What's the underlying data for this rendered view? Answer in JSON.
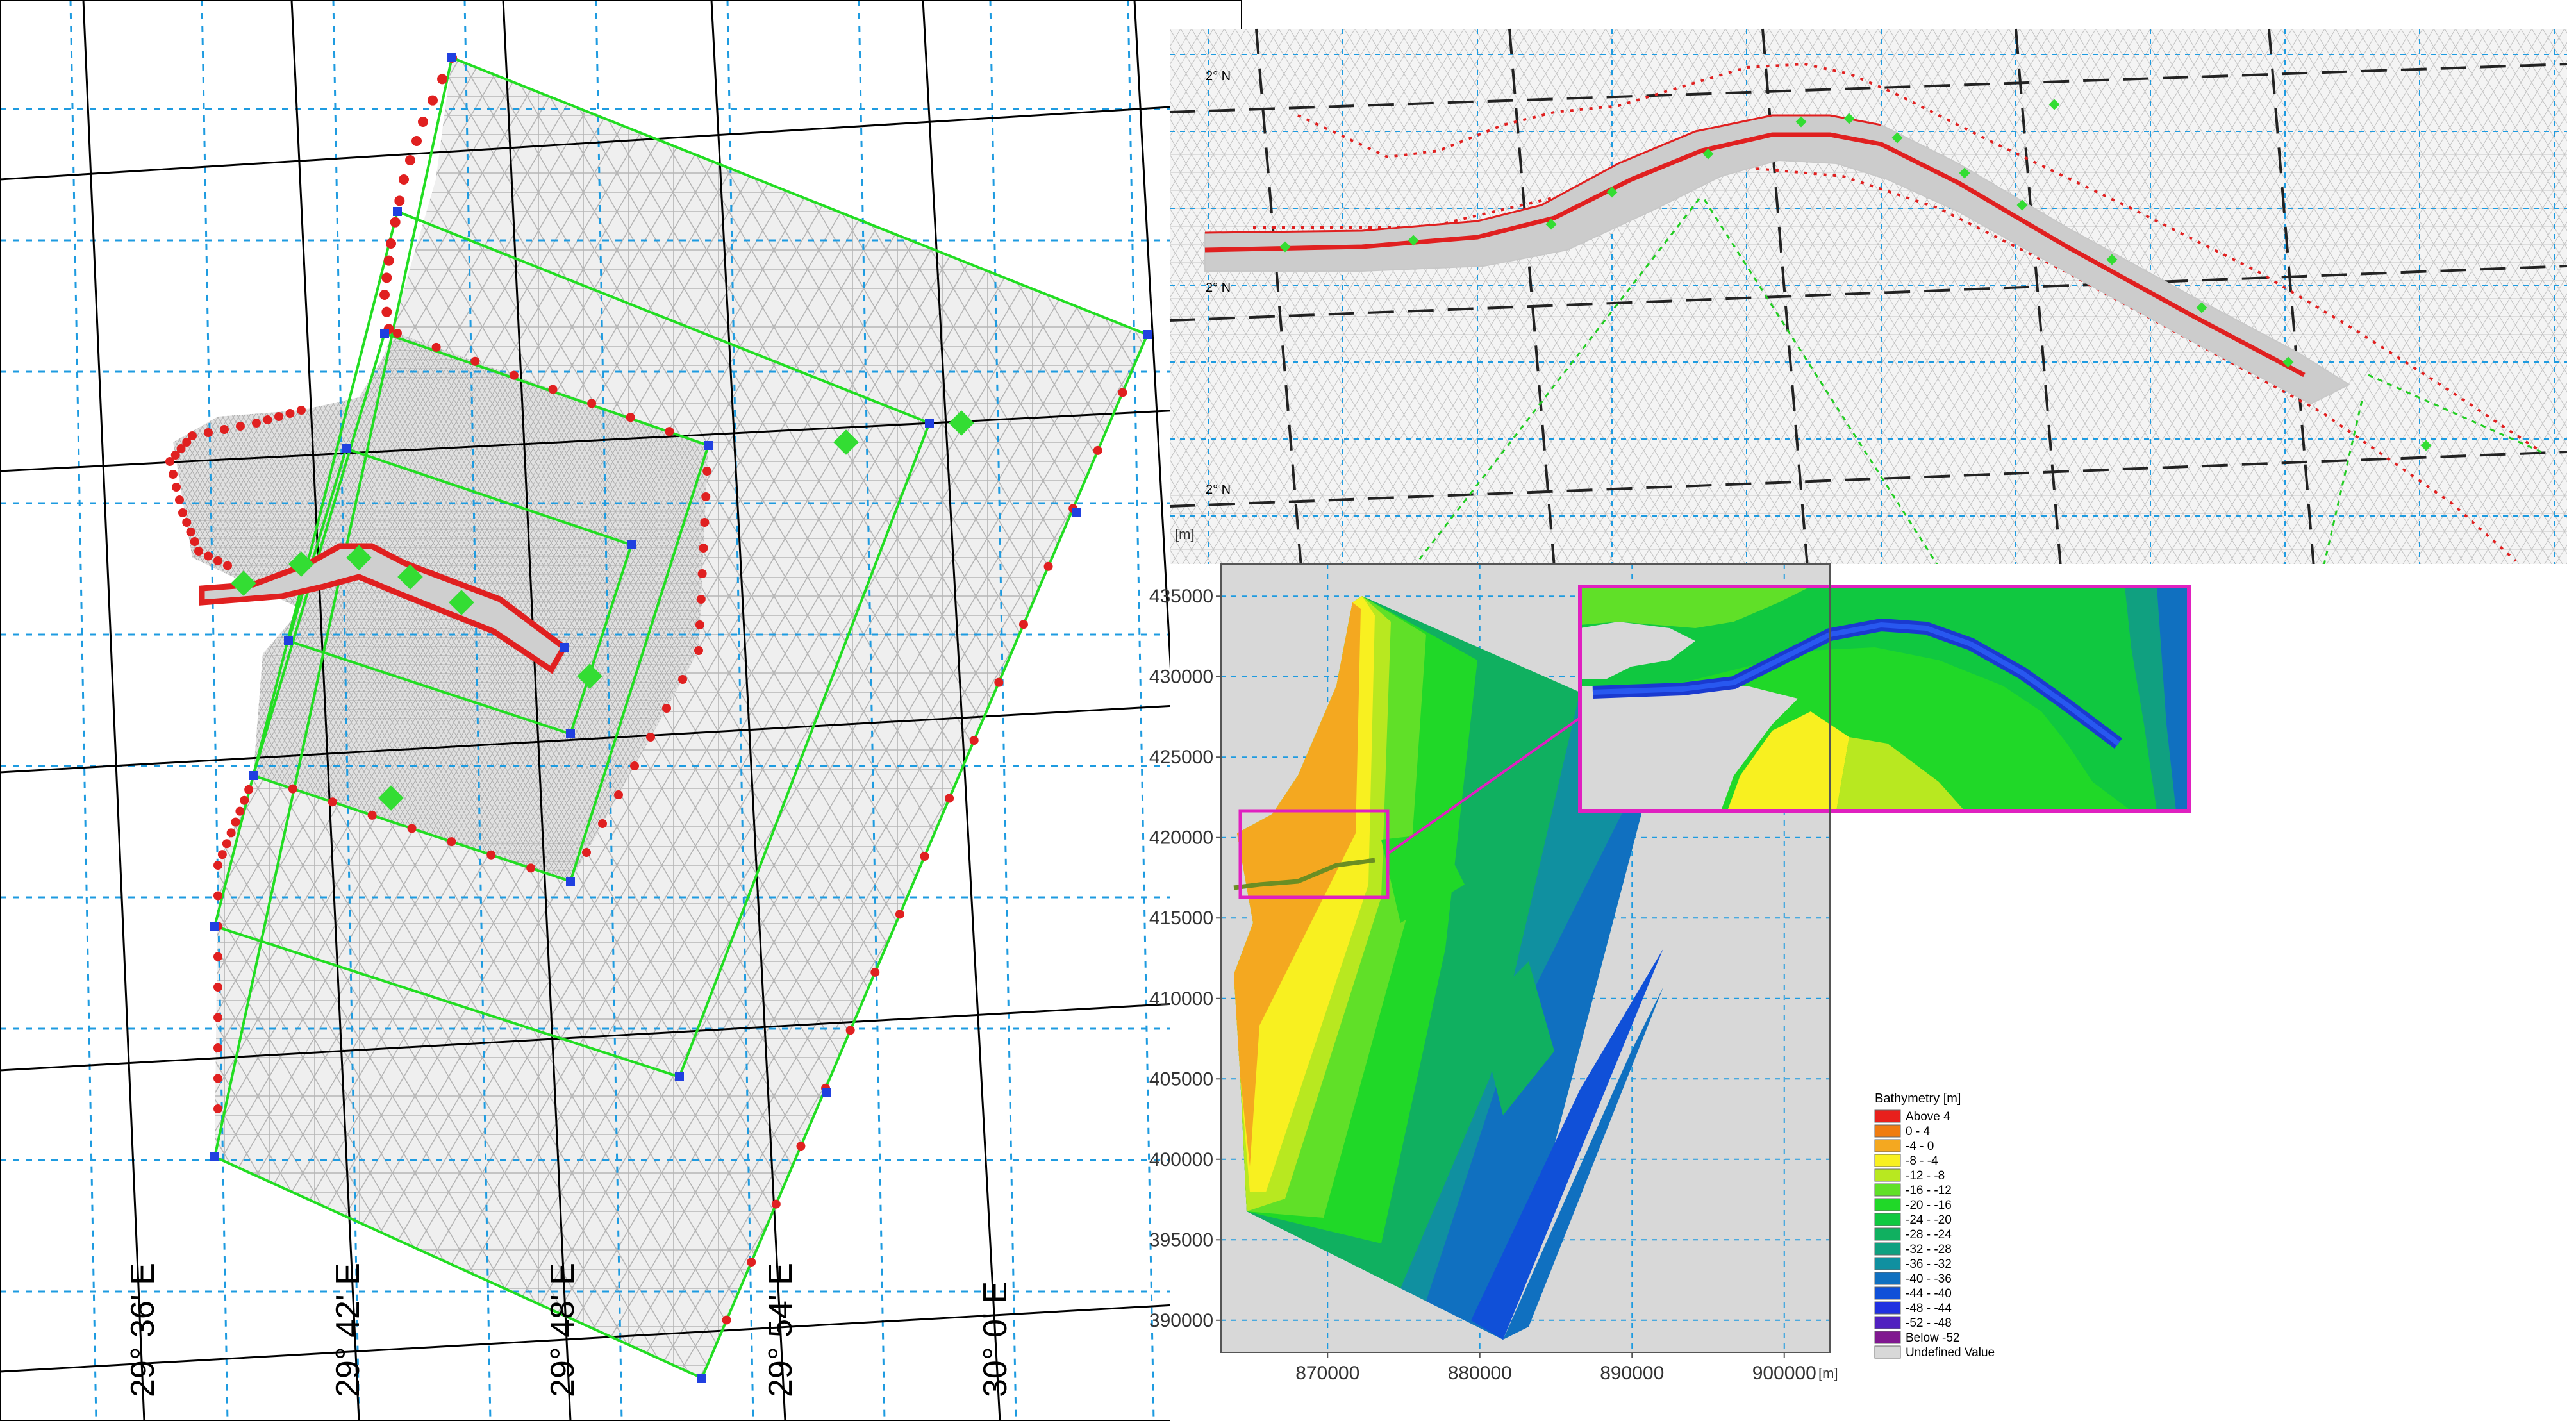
{
  "left_panel": {
    "lon_labels": [
      "29° 36' E",
      "29° 42' E",
      "29° 48' E",
      "29° 54' E",
      "30° 0' E"
    ]
  },
  "top_right_panel": {
    "lat_labels": [
      "2° N",
      "2° N",
      "2° N"
    ],
    "unit": "[m]"
  },
  "bathymetry_panel": {
    "x_unit": "[m]",
    "y_unit": "[m]",
    "y_ticks": [
      "435000",
      "430000",
      "425000",
      "420000",
      "415000",
      "410000",
      "405000",
      "400000",
      "395000",
      "390000"
    ],
    "x_ticks": [
      "870000",
      "880000",
      "890000",
      "900000"
    ],
    "legend": {
      "title": "Bathymetry [m]",
      "entries": [
        {
          "label": "Above  4",
          "color": "#e8201c"
        },
        {
          "label": "0 -  4",
          "color": "#f07c10"
        },
        {
          "label": "-4 -  0",
          "color": "#f4a820"
        },
        {
          "label": "-8 - -4",
          "color": "#f8f020"
        },
        {
          "label": "-12 - -8",
          "color": "#b8e820"
        },
        {
          "label": "-16 - -12",
          "color": "#60e028"
        },
        {
          "label": "-20 - -16",
          "color": "#20d828"
        },
        {
          "label": "-24 - -20",
          "color": "#10c840"
        },
        {
          "label": "-28 - -24",
          "color": "#10b060"
        },
        {
          "label": "-32 - -28",
          "color": "#10a080"
        },
        {
          "label": "-36 - -32",
          "color": "#1090a0"
        },
        {
          "label": "-40 - -36",
          "color": "#1070c0"
        },
        {
          "label": "-44 - -40",
          "color": "#1050d8"
        },
        {
          "label": "-48 - -44",
          "color": "#2030e0"
        },
        {
          "label": "-52 - -48",
          "color": "#5020c0"
        },
        {
          "label": "Below -52",
          "color": "#801890"
        },
        {
          "label": "Undefined Value",
          "color": "#d8d8d8"
        }
      ]
    }
  },
  "colors": {
    "mesh_line": "#b8b8b8",
    "mesh_fill": "#e6e6e6",
    "dense_mesh": "#cfcfcf",
    "polygon_green": "#22dd22",
    "boundary_red": "#e02020",
    "vertex_blue": "#2040e0",
    "grid_dash": "#1e9be0",
    "graticule": "#000000",
    "inset_border": "#e020c0"
  }
}
